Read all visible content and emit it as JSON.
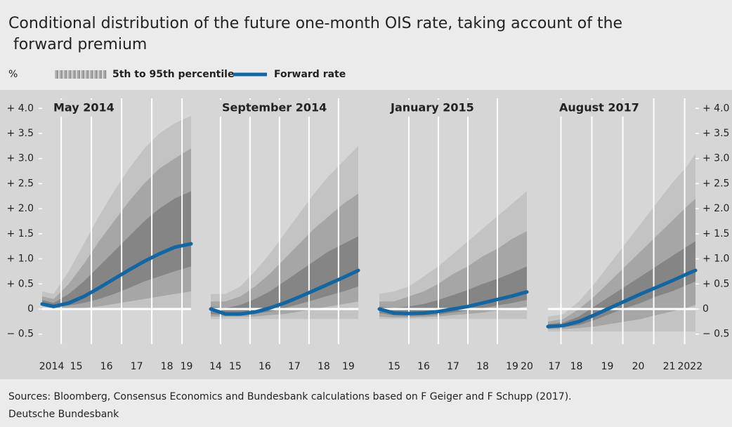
{
  "title": "Conditional distribution of the future one-month OIS rate, taking account of the forward premium",
  "unit": "%",
  "legend": {
    "bands": {
      "name": "5th to 95th percentile",
      "colors": [
        "#c3c3c3",
        "#a6a6a6",
        "#858585"
      ]
    },
    "line": {
      "name": "Forward rate",
      "color": "#1466a3"
    }
  },
  "sources": "Sources: Bloomberg, Consensus Economics and Bundesbank calculations based on F Geiger and F Schupp (2017).",
  "publisher": "Deutsche Bundesbank",
  "chart_data": [
    {
      "type": "fan",
      "title": "May 2014",
      "x": [
        2014.37,
        2014.75,
        2015.25,
        2015.75,
        2016.25,
        2016.75,
        2017.25,
        2017.75,
        2018.25,
        2018.75,
        2019.3
      ],
      "xlim": [
        2014.37,
        2019.3
      ],
      "xticks": [
        {
          "value": 2014,
          "label": "2014"
        },
        {
          "value": 2015,
          "label": "15"
        },
        {
          "value": 2016,
          "label": "16"
        },
        {
          "value": 2017,
          "label": "17"
        },
        {
          "value": 2018,
          "label": "18"
        },
        {
          "value": 2019,
          "label": "19"
        }
      ],
      "ylim": [
        -0.7,
        4.2
      ],
      "yaxis": "left",
      "yticks": [
        {
          "value": 4,
          "label": "+ 4.0"
        },
        {
          "value": 3.5,
          "label": "+ 3.5"
        },
        {
          "value": 3,
          "label": "+ 3.0"
        },
        {
          "value": 2.5,
          "label": "+ 2.5"
        },
        {
          "value": 2,
          "label": "+ 2.0"
        },
        {
          "value": 1.5,
          "label": "+ 1.5"
        },
        {
          "value": 1,
          "label": "+ 1.0"
        },
        {
          "value": 0.5,
          "label": "+ 0.5"
        },
        0,
        {
          "value": -0.5,
          "label": "− 0.5"
        }
      ],
      "bands": [
        {
          "lower": [
            0.05,
            0,
            0,
            0,
            0,
            0,
            0,
            0,
            0,
            0,
            0
          ],
          "upper": [
            0.35,
            0.3,
            0.75,
            1.3,
            1.85,
            2.35,
            2.8,
            3.2,
            3.5,
            3.7,
            3.85
          ]
        },
        {
          "lower": [
            0.07,
            0.02,
            0.02,
            0.02,
            0.05,
            0.1,
            0.15,
            0.2,
            0.25,
            0.3,
            0.35
          ],
          "upper": [
            0.25,
            0.2,
            0.5,
            0.9,
            1.35,
            1.75,
            2.15,
            2.5,
            2.8,
            3.0,
            3.2
          ]
        },
        {
          "lower": [
            0.08,
            0.03,
            0.07,
            0.12,
            0.2,
            0.3,
            0.42,
            0.55,
            0.65,
            0.75,
            0.85
          ],
          "upper": [
            0.18,
            0.12,
            0.3,
            0.55,
            0.85,
            1.15,
            1.45,
            1.75,
            2.0,
            2.2,
            2.35
          ]
        }
      ],
      "forward_rate": [
        0.1,
        0.05,
        0.12,
        0.25,
        0.42,
        0.6,
        0.78,
        0.95,
        1.1,
        1.23,
        1.3
      ]
    },
    {
      "type": "fan",
      "title": "September 2014",
      "x": [
        2014.67,
        2015.17,
        2015.67,
        2016.17,
        2016.67,
        2017.17,
        2017.67,
        2018.17,
        2018.67,
        2019.17,
        2019.67
      ],
      "xlim": [
        2014.67,
        2019.67
      ],
      "xticks": [
        {
          "value": 2014,
          "label": "14"
        },
        {
          "value": 2015,
          "label": "15"
        },
        {
          "value": 2016,
          "label": "16"
        },
        {
          "value": 2017,
          "label": "17"
        },
        {
          "value": 2018,
          "label": "18"
        },
        {
          "value": 2019,
          "label": "19"
        }
      ],
      "ylim": [
        -0.7,
        4.2
      ],
      "bands": [
        {
          "lower": [
            -0.2,
            -0.2,
            -0.2,
            -0.2,
            -0.2,
            -0.2,
            -0.2,
            -0.2,
            -0.2,
            -0.2,
            -0.2
          ],
          "upper": [
            0.3,
            0.3,
            0.45,
            0.75,
            1.1,
            1.5,
            1.9,
            2.3,
            2.65,
            2.95,
            3.25
          ]
        },
        {
          "lower": [
            -0.15,
            -0.15,
            -0.15,
            -0.15,
            -0.12,
            -0.1,
            -0.05,
            0,
            0.05,
            0.1,
            0.15
          ],
          "upper": [
            0.15,
            0.15,
            0.25,
            0.45,
            0.7,
            1.0,
            1.3,
            1.6,
            1.85,
            2.1,
            2.3
          ]
        },
        {
          "lower": [
            -0.1,
            -0.12,
            -0.12,
            -0.1,
            -0.05,
            0.02,
            0.1,
            0.18,
            0.27,
            0.35,
            0.45
          ],
          "upper": [
            0.05,
            0.02,
            0.08,
            0.2,
            0.35,
            0.55,
            0.75,
            0.95,
            1.15,
            1.3,
            1.45
          ]
        }
      ],
      "forward_rate": [
        0,
        -0.1,
        -0.1,
        -0.06,
        0.02,
        0.12,
        0.24,
        0.37,
        0.5,
        0.63,
        0.77
      ]
    },
    {
      "type": "fan",
      "title": "January 2015",
      "x": [
        2015.0,
        2015.5,
        2016.0,
        2016.5,
        2017.0,
        2017.5,
        2018.0,
        2018.5,
        2019.0,
        2019.5,
        2020.0
      ],
      "xlim": [
        2015.0,
        2020.0
      ],
      "xticks": [
        {
          "value": 2015,
          "label": "15"
        },
        {
          "value": 2016,
          "label": "16"
        },
        {
          "value": 2017,
          "label": "17"
        },
        {
          "value": 2018,
          "label": "18"
        },
        {
          "value": 2019,
          "label": "19"
        },
        {
          "value": 2020,
          "label": "20"
        }
      ],
      "ylim": [
        -0.7,
        4.2
      ],
      "bands": [
        {
          "lower": [
            -0.2,
            -0.2,
            -0.2,
            -0.2,
            -0.2,
            -0.2,
            -0.2,
            -0.2,
            -0.2,
            -0.2,
            -0.2
          ],
          "upper": [
            0.3,
            0.35,
            0.45,
            0.65,
            0.85,
            1.1,
            1.35,
            1.6,
            1.85,
            2.1,
            2.35
          ]
        },
        {
          "lower": [
            -0.15,
            -0.17,
            -0.17,
            -0.16,
            -0.15,
            -0.12,
            -0.1,
            -0.07,
            -0.03,
            0,
            0.05
          ],
          "upper": [
            0.15,
            0.15,
            0.25,
            0.35,
            0.5,
            0.7,
            0.85,
            1.05,
            1.2,
            1.4,
            1.55
          ]
        },
        {
          "lower": [
            -0.08,
            -0.13,
            -0.14,
            -0.13,
            -0.11,
            -0.07,
            -0.03,
            0.02,
            0.07,
            0.12,
            0.18
          ],
          "upper": [
            0.05,
            0.02,
            0.05,
            0.1,
            0.18,
            0.28,
            0.38,
            0.5,
            0.6,
            0.72,
            0.85
          ]
        }
      ],
      "forward_rate": [
        0,
        -0.08,
        -0.09,
        -0.08,
        -0.05,
        0,
        0.05,
        0.12,
        0.19,
        0.26,
        0.34
      ]
    },
    {
      "type": "fan",
      "title": "August 2017",
      "x": [
        2017.58,
        2018.08,
        2018.58,
        2019.08,
        2019.58,
        2020.08,
        2020.58,
        2021.08,
        2021.58,
        2022.08,
        2022.35
      ],
      "xlim": [
        2017.58,
        2022.35
      ],
      "xticks": [
        {
          "value": 2017,
          "label": "17"
        },
        {
          "value": 2018,
          "label": "18"
        },
        {
          "value": 2019,
          "label": "19"
        },
        {
          "value": 2020,
          "label": "20"
        },
        {
          "value": 2021,
          "label": "21"
        },
        2022
      ],
      "ylim": [
        -0.7,
        4.2
      ],
      "yaxis": "right",
      "yticks": [
        {
          "value": 4,
          "label": "+ 4.0"
        },
        {
          "value": 3.5,
          "label": "+ 3.5"
        },
        {
          "value": 3,
          "label": "+ 3.0"
        },
        {
          "value": 2.5,
          "label": "+ 2.5"
        },
        {
          "value": 2,
          "label": "+ 2.0"
        },
        {
          "value": 1.5,
          "label": "+ 1.5"
        },
        {
          "value": 1,
          "label": "+ 1.0"
        },
        {
          "value": 0.5,
          "label": "+ 0.5"
        },
        0,
        {
          "value": -0.5,
          "label": "− 0.5"
        }
      ],
      "bands": [
        {
          "lower": [
            -0.45,
            -0.45,
            -0.45,
            -0.45,
            -0.45,
            -0.45,
            -0.45,
            -0.45,
            -0.45,
            -0.45,
            -0.45
          ],
          "upper": [
            -0.15,
            -0.1,
            0.15,
            0.5,
            0.9,
            1.3,
            1.7,
            2.1,
            2.5,
            2.85,
            3.1
          ]
        },
        {
          "lower": [
            -0.4,
            -0.4,
            -0.38,
            -0.35,
            -0.3,
            -0.25,
            -0.2,
            -0.12,
            -0.05,
            0.03,
            0.08
          ],
          "upper": [
            -0.25,
            -0.2,
            0,
            0.25,
            0.55,
            0.85,
            1.15,
            1.45,
            1.75,
            2.05,
            2.2
          ]
        },
        {
          "lower": [
            -0.37,
            -0.36,
            -0.32,
            -0.22,
            -0.1,
            0.02,
            0.12,
            0.25,
            0.35,
            0.48,
            0.55
          ],
          "upper": [
            -0.3,
            -0.27,
            -0.15,
            0.05,
            0.25,
            0.45,
            0.65,
            0.85,
            1.05,
            1.25,
            1.35
          ]
        }
      ],
      "forward_rate": [
        -0.35,
        -0.33,
        -0.25,
        -0.12,
        0.02,
        0.16,
        0.3,
        0.43,
        0.56,
        0.7,
        0.77
      ]
    }
  ]
}
